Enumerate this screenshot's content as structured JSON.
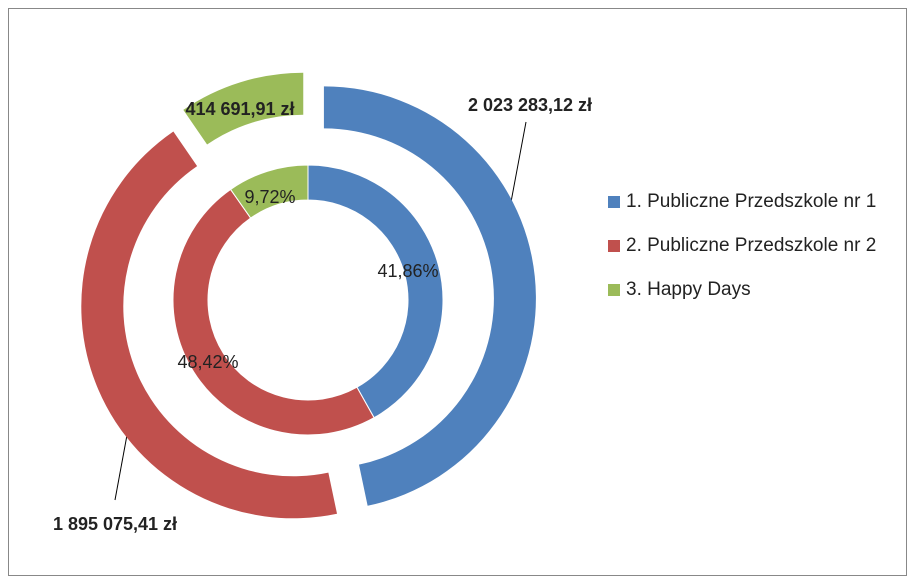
{
  "chart_data": {
    "type": "doughnut",
    "categories": [
      "1. Publiczne Przedszkole nr 1",
      "2. Publiczne Przedszkole nr 2",
      "3. Happy Days"
    ],
    "colors": [
      "#4f81bd",
      "#c0504d",
      "#9bbb59"
    ],
    "series": [
      {
        "values": [
          41.86,
          48.42,
          9.72
        ],
        "value_labels": [
          "41,86%",
          "48,42%",
          "9,72%"
        ]
      },
      {
        "values": [
          2023283.12,
          1895075.41,
          414691.91
        ],
        "value_labels": [
          "2 023 283,12 zł",
          "1 895 075,41 zł",
          "414 691,91 zł"
        ]
      }
    ],
    "legend": "right"
  }
}
